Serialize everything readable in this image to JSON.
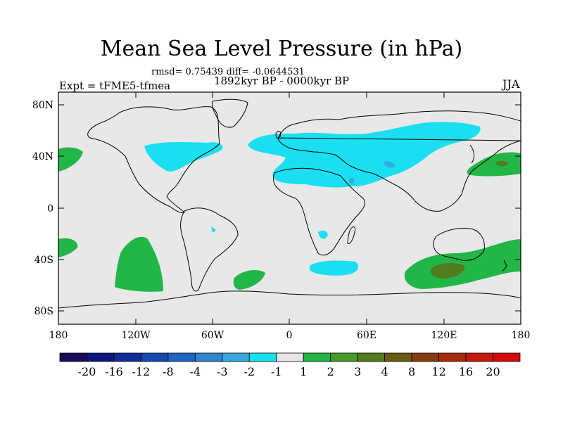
{
  "title": "Mean Sea Level Pressure (in hPa)",
  "stats": "rmsd= 0.75439 diff= -0.0644531",
  "period": "1892kyr BP - 0000kyr BP",
  "expt": "Expt = tFME5-tfmea",
  "season": "JJA",
  "lat_labels": [
    "80N",
    "40N",
    "0",
    "40S",
    "80S"
  ],
  "lon_labels": [
    "180",
    "120W",
    "60W",
    "0",
    "60E",
    "120E",
    "180"
  ],
  "colorbar": {
    "labels": [
      "-20",
      "-16",
      "-12",
      "-8",
      "-4",
      "-3",
      "-2",
      "-1",
      "1",
      "2",
      "3",
      "4",
      "8",
      "12",
      "16",
      "20"
    ],
    "colors": [
      "#1a0a5e",
      "#0f177f",
      "#102b9c",
      "#1448b0",
      "#1f65c2",
      "#2f86cf",
      "#39a7dc",
      "#19dff0",
      "#e6e6e6",
      "#22b548",
      "#4a9a2a",
      "#537c1c",
      "#6a5a12",
      "#843c10",
      "#a82a0c",
      "#c41a0a",
      "#d40a0a"
    ]
  },
  "map_colors": {
    "ocean": "#e8e8e8",
    "neg_1": "#19dff0",
    "neg_2": "#39a7dc",
    "pos_1": "#22b548",
    "pos_3": "#537c1c"
  }
}
